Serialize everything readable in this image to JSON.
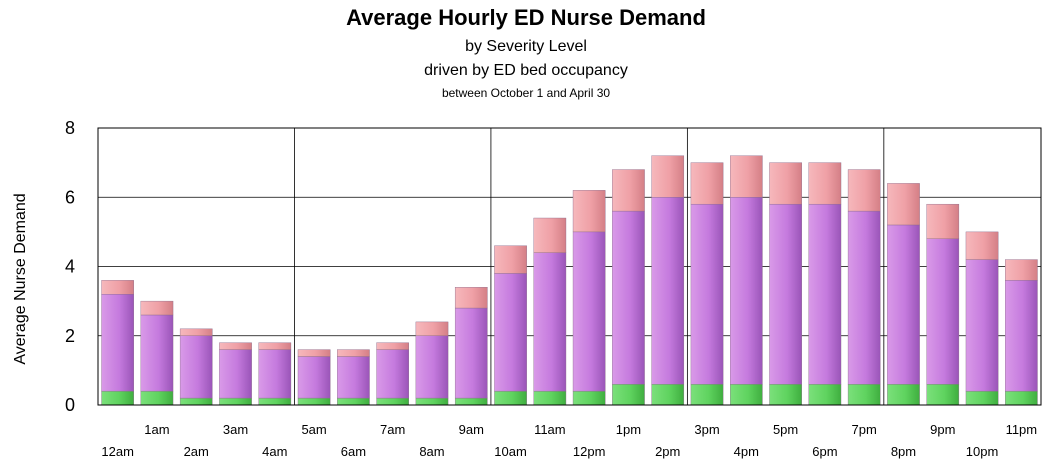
{
  "chart_data": {
    "type": "bar",
    "stacked": true,
    "title": "Average Hourly ED Nurse Demand",
    "subtitles": [
      "by Severity Level",
      "driven by ED bed occupancy",
      "between October 1 and April 30"
    ],
    "xlabel": "",
    "ylabel": "Average Nurse Demand",
    "ylim": [
      0,
      8
    ],
    "yticks": [
      "0",
      "2",
      "4",
      "6",
      "8"
    ],
    "grid": true,
    "legend": "none",
    "categories": [
      "12am",
      "1am",
      "2am",
      "3am",
      "4am",
      "5am",
      "6am",
      "7am",
      "8am",
      "9am",
      "10am",
      "11am",
      "12pm",
      "1pm",
      "2pm",
      "3pm",
      "4pm",
      "5pm",
      "6pm",
      "7pm",
      "8pm",
      "9pm",
      "10pm",
      "11pm"
    ],
    "series": [
      {
        "color": "#5fd35f",
        "values": [
          0.4,
          0.4,
          0.2,
          0.2,
          0.2,
          0.2,
          0.2,
          0.2,
          0.2,
          0.2,
          0.4,
          0.4,
          0.4,
          0.6,
          0.6,
          0.6,
          0.6,
          0.6,
          0.6,
          0.6,
          0.6,
          0.6,
          0.4,
          0.4
        ]
      },
      {
        "color": "#c879e0",
        "values": [
          2.8,
          2.2,
          1.8,
          1.4,
          1.4,
          1.2,
          1.2,
          1.4,
          1.8,
          2.6,
          3.4,
          4.0,
          4.6,
          5.0,
          5.4,
          5.2,
          5.4,
          5.2,
          5.2,
          5.0,
          4.6,
          4.2,
          3.8,
          3.2
        ]
      },
      {
        "color": "#f0a0a6",
        "values": [
          0.4,
          0.4,
          0.2,
          0.2,
          0.2,
          0.2,
          0.2,
          0.2,
          0.4,
          0.6,
          0.8,
          1.0,
          1.2,
          1.2,
          1.2,
          1.2,
          1.2,
          1.2,
          1.2,
          1.2,
          1.2,
          1.0,
          0.8,
          0.6
        ]
      }
    ]
  }
}
